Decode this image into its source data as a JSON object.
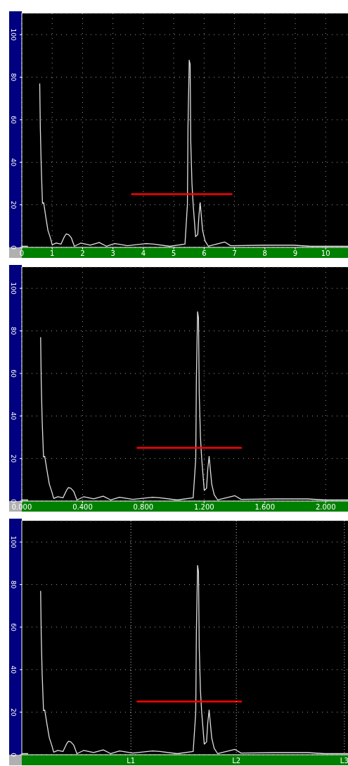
{
  "chart_data": [
    {
      "type": "line",
      "xlim": [
        0,
        10.92
      ],
      "xticks": [
        0,
        1,
        2,
        3,
        4,
        5,
        6,
        7,
        8,
        9,
        10
      ],
      "ylim": [
        0,
        110
      ],
      "yticks": [
        0,
        20,
        40,
        60,
        80,
        100
      ],
      "grid": true,
      "marker": "none",
      "line_style": "solid",
      "series": [
        {
          "color": "#e0e0e0",
          "x": [
            0,
            0.2,
            0.21,
            0.58,
            0.59,
            0.61,
            0.64,
            0.68,
            0.72,
            0.79,
            0.86,
            0.94,
            1.0,
            1.13,
            1.29,
            1.4,
            1.46,
            1.54,
            1.63,
            1.73,
            1.94,
            2.25,
            2.55,
            2.79,
            3.06,
            3.48,
            4.1,
            4.33,
            4.87,
            5.37,
            5.45,
            5.47,
            5.51,
            5.54,
            5.56,
            5.6,
            5.64,
            5.72,
            5.79,
            5.83,
            5.87,
            5.95,
            6.03,
            6.14,
            6.68,
            6.87,
            7.95,
            8.95,
            9.5,
            10.9
          ],
          "values": [
            0.5,
            0.5,
            null,
            null,
            77,
            56,
            38,
            20.7,
            21,
            14.3,
            8,
            4.5,
            1.2,
            2,
            1.5,
            5,
            6.3,
            6,
            4.5,
            0.5,
            2,
            1,
            2.3,
            0.5,
            1.8,
            0.8,
            1.8,
            1.5,
            0.5,
            1.5,
            20,
            57,
            88,
            86,
            50,
            30,
            20,
            5,
            6,
            15,
            21,
            8,
            3,
            0.5,
            2.5,
            0.8,
            1,
            1,
            0.5,
            0.5
          ]
        },
        {
          "color": "#ff0000",
          "x": [
            3.6,
            6.93
          ],
          "values": [
            25,
            25
          ]
        }
      ]
    },
    {
      "type": "line",
      "xlim": [
        0,
        2.184
      ],
      "xticks": [
        {
          "value": 0,
          "label": "0.000"
        },
        {
          "value": 0.4,
          "label": "0.400"
        },
        {
          "value": 0.8,
          "label": "0.800"
        },
        {
          "value": 1.2,
          "label": "1.200"
        },
        {
          "value": 1.6,
          "label": "1.600"
        },
        {
          "value": 2.0,
          "label": "2.000"
        }
      ],
      "ylim": [
        0,
        110
      ],
      "yticks": [
        0,
        20,
        40,
        60,
        80,
        100
      ],
      "grid": true,
      "marker": "none",
      "line_style": "solid",
      "series": [
        {
          "color": "#e0e0e0",
          "x": [
            0,
            0.042,
            0.044,
            0.122,
            0.124,
            0.128,
            0.134,
            0.143,
            0.151,
            0.166,
            0.181,
            0.197,
            0.21,
            0.237,
            0.271,
            0.294,
            0.307,
            0.323,
            0.342,
            0.363,
            0.407,
            0.473,
            0.536,
            0.586,
            0.643,
            0.731,
            0.861,
            0.909,
            1.023,
            1.128,
            1.145,
            1.149,
            1.157,
            1.163,
            1.168,
            1.176,
            1.184,
            1.201,
            1.216,
            1.224,
            1.233,
            1.25,
            1.266,
            1.289,
            1.403,
            1.443,
            1.67,
            1.88,
            1.995,
            2.18
          ],
          "values": [
            0.5,
            0.5,
            null,
            null,
            77,
            56,
            38,
            20.7,
            21,
            14.3,
            8,
            4.5,
            1.2,
            2,
            1.5,
            5,
            6.3,
            6,
            4.5,
            0.5,
            2,
            1,
            2.3,
            0.5,
            1.8,
            0.8,
            1.8,
            1.5,
            0.5,
            1.5,
            20,
            57,
            89,
            86,
            50,
            30,
            20,
            5,
            6,
            15,
            21,
            8,
            3,
            0.5,
            2.5,
            0.8,
            1,
            1,
            0.5,
            0.5
          ]
        },
        {
          "color": "#ff0000",
          "x": [
            0.756,
            1.448
          ],
          "values": [
            25,
            25
          ]
        }
      ]
    },
    {
      "type": "line",
      "xlim": [
        0,
        2.184
      ],
      "tick_labels": "y",
      "ref_lines": [
        {
          "axis": "x",
          "value": 0.718,
          "label": "L1"
        },
        {
          "axis": "x",
          "value": 1.412,
          "label": "L2"
        },
        {
          "axis": "x",
          "value": 2.123,
          "label": "L3"
        }
      ],
      "ylim": [
        0,
        110
      ],
      "yticks": [
        0,
        20,
        40,
        60,
        80,
        100
      ],
      "grid": "y",
      "marker": "none",
      "line_style": "solid",
      "series": [
        {
          "color": "#e0e0e0",
          "x": [
            0,
            0.042,
            0.044,
            0.122,
            0.124,
            0.128,
            0.134,
            0.143,
            0.151,
            0.166,
            0.181,
            0.197,
            0.21,
            0.237,
            0.271,
            0.294,
            0.307,
            0.323,
            0.342,
            0.363,
            0.407,
            0.473,
            0.536,
            0.586,
            0.643,
            0.731,
            0.861,
            0.909,
            1.023,
            1.128,
            1.145,
            1.149,
            1.157,
            1.163,
            1.168,
            1.176,
            1.184,
            1.201,
            1.216,
            1.224,
            1.233,
            1.25,
            1.266,
            1.289,
            1.403,
            1.443,
            1.67,
            1.88,
            1.995,
            2.18
          ],
          "values": [
            0.5,
            0.5,
            null,
            null,
            77,
            56,
            38,
            20.7,
            21,
            14.3,
            8,
            4.5,
            1.2,
            2,
            1.5,
            5,
            6.3,
            6,
            4.5,
            0.5,
            2,
            1,
            2.3,
            0.5,
            1.8,
            0.8,
            1.8,
            1.5,
            0.5,
            1.5,
            20,
            57,
            89,
            86,
            50,
            30,
            20,
            5,
            6,
            15,
            21,
            8,
            3,
            0.5,
            2.5,
            0.8,
            1,
            1,
            0.5,
            0.5
          ]
        },
        {
          "color": "#ff0000",
          "x": [
            0.756,
            1.448
          ],
          "values": [
            25,
            25
          ]
        }
      ]
    }
  ]
}
